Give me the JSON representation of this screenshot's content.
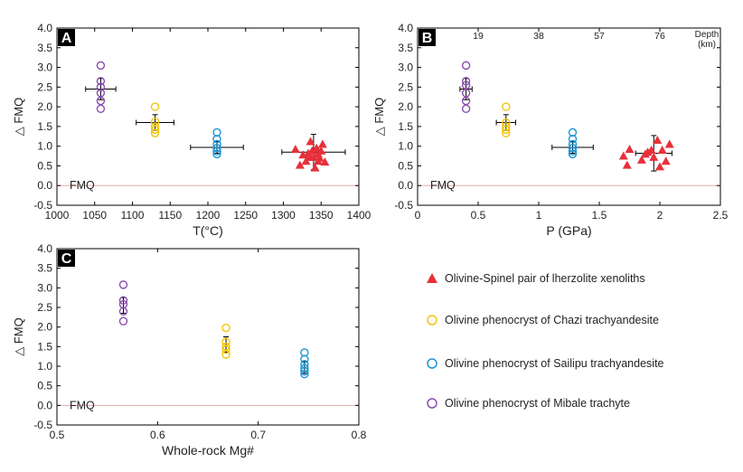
{
  "colors": {
    "red": "#e8303a",
    "yellow": "#f2c40c",
    "blue": "#1d95d3",
    "purple": "#8a4fb0",
    "fmq_line": "#e8a8a8"
  },
  "chart_data": [
    {
      "type": "scatter",
      "panel_label": "A",
      "xlabel": "T(°C)",
      "ylabel": "△ FMQ",
      "xlim": [
        1000,
        1400
      ],
      "ylim": [
        -0.5,
        4.0
      ],
      "xticks": [
        1000,
        1050,
        1100,
        1150,
        1200,
        1250,
        1300,
        1350,
        1400
      ],
      "xtick_labels": [
        "1000",
        "1050",
        "1100",
        "1150",
        "1200",
        "1250",
        "1300",
        "1350",
        "1400"
      ],
      "yticks": [
        -0.5,
        0,
        0.5,
        1,
        1.5,
        2,
        2.5,
        3,
        3.5,
        4
      ],
      "ytick_labels": [
        "-0.5",
        "0.0",
        "0.5",
        "1.0",
        "1.5",
        "2.0",
        "2.5",
        "3.0",
        "3.5",
        "4.0"
      ],
      "ref_line": {
        "y": 0,
        "label": "FMQ"
      },
      "series": [
        {
          "name": "Olivine-Spinel pair of lherzolite xenoliths",
          "color_key": "red",
          "marker": "triangle",
          "points": [
            [
              1316,
              0.92
            ],
            [
              1322,
              0.52
            ],
            [
              1326,
              0.78
            ],
            [
              1330,
              0.62
            ],
            [
              1333,
              0.82
            ],
            [
              1336,
              1.12
            ],
            [
              1338,
              0.88
            ],
            [
              1340,
              0.72
            ],
            [
              1342,
              0.45
            ],
            [
              1344,
              0.95
            ],
            [
              1346,
              0.8
            ],
            [
              1348,
              0.7
            ],
            [
              1350,
              0.88
            ],
            [
              1352,
              1.05
            ],
            [
              1355,
              0.6
            ],
            [
              1346,
              0.62
            ],
            [
              1334,
              0.72
            ]
          ],
          "mean": [
            1340,
            0.85
          ],
          "xerr": 42,
          "yerr": 0.45
        },
        {
          "name": "Olivine phenocryst of Chazi trachyandesite",
          "color_key": "yellow",
          "marker": "circle",
          "points": [
            [
              1130,
              2.0
            ],
            [
              1130,
              1.62
            ],
            [
              1130,
              1.5
            ],
            [
              1130,
              1.42
            ],
            [
              1130,
              1.33
            ]
          ],
          "mean": [
            1130,
            1.6
          ],
          "xerr": 25,
          "yerr": 0.2
        },
        {
          "name": "Olivine phenocryst of Sailipu trachyandesite",
          "color_key": "blue",
          "marker": "circle",
          "points": [
            [
              1212,
              1.35
            ],
            [
              1212,
              1.18
            ],
            [
              1212,
              1.05
            ],
            [
              1212,
              0.95
            ],
            [
              1212,
              0.87
            ],
            [
              1212,
              0.8
            ]
          ],
          "mean": [
            1212,
            0.97
          ],
          "xerr": 35,
          "yerr": 0.15
        },
        {
          "name": "Olivine phenocryst of Mibale trachyte",
          "color_key": "purple",
          "marker": "circle",
          "points": [
            [
              1058,
              3.05
            ],
            [
              1058,
              2.65
            ],
            [
              1058,
              2.5
            ],
            [
              1058,
              2.35
            ],
            [
              1058,
              2.15
            ],
            [
              1058,
              1.95
            ]
          ],
          "mean": [
            1058,
            2.45
          ],
          "xerr": 20,
          "yerr": 0.27
        }
      ]
    },
    {
      "type": "scatter",
      "panel_label": "B",
      "xlabel": "P (GPa)",
      "ylabel": "△ FMQ",
      "xlim": [
        0,
        2.5
      ],
      "ylim": [
        -0.5,
        4.0
      ],
      "xticks": [
        0,
        0.5,
        1,
        1.5,
        2,
        2.5
      ],
      "xtick_labels": [
        "0",
        "0.5",
        "1",
        "1.5",
        "2",
        "2.5"
      ],
      "yticks": [
        -0.5,
        0,
        0.5,
        1,
        1.5,
        2,
        2.5,
        3,
        3.5,
        4
      ],
      "ytick_labels": [
        "-0.5",
        "0.0",
        "0.5",
        "1.0",
        "1.5",
        "2.0",
        "2.5",
        "3.0",
        "3.5",
        "4.0"
      ],
      "top_axis_label": "Depth\n(km)",
      "top_ticks": [
        {
          "x": 0.5,
          "label": "19"
        },
        {
          "x": 1.0,
          "label": "38"
        },
        {
          "x": 1.5,
          "label": "57"
        },
        {
          "x": 2.0,
          "label": "76"
        }
      ],
      "ref_line": {
        "y": 0,
        "label": "FMQ"
      },
      "series": [
        {
          "name": "Olivine-Spinel pair of lherzolite xenoliths",
          "color_key": "red",
          "marker": "triangle",
          "points": [
            [
              1.7,
              0.75
            ],
            [
              1.73,
              0.52
            ],
            [
              1.75,
              0.92
            ],
            [
              1.85,
              0.65
            ],
            [
              1.88,
              0.8
            ],
            [
              1.9,
              0.85
            ],
            [
              1.93,
              0.9
            ],
            [
              1.95,
              0.72
            ],
            [
              1.98,
              1.15
            ],
            [
              2.0,
              0.48
            ],
            [
              2.02,
              0.9
            ],
            [
              2.05,
              0.62
            ],
            [
              2.08,
              1.05
            ]
          ],
          "mean": [
            1.95,
            0.82
          ],
          "xerr": 0.15,
          "yerr": 0.45
        },
        {
          "name": "Olivine phenocryst of Chazi trachyandesite",
          "color_key": "yellow",
          "marker": "circle",
          "points": [
            [
              0.73,
              2.0
            ],
            [
              0.73,
              1.6
            ],
            [
              0.73,
              1.5
            ],
            [
              0.73,
              1.42
            ],
            [
              0.73,
              1.33
            ]
          ],
          "mean": [
            0.73,
            1.6
          ],
          "xerr": 0.08,
          "yerr": 0.2
        },
        {
          "name": "Olivine phenocryst of Sailipu trachyandesite",
          "color_key": "blue",
          "marker": "circle",
          "points": [
            [
              1.28,
              1.35
            ],
            [
              1.28,
              1.18
            ],
            [
              1.28,
              1.05
            ],
            [
              1.28,
              0.95
            ],
            [
              1.28,
              0.87
            ],
            [
              1.28,
              0.8
            ]
          ],
          "mean": [
            1.28,
            0.97
          ],
          "xerr": 0.17,
          "yerr": 0.15
        },
        {
          "name": "Olivine phenocryst of Mibale trachyte",
          "color_key": "purple",
          "marker": "circle",
          "points": [
            [
              0.4,
              3.05
            ],
            [
              0.4,
              2.65
            ],
            [
              0.4,
              2.55
            ],
            [
              0.4,
              2.35
            ],
            [
              0.4,
              2.15
            ],
            [
              0.4,
              1.95
            ]
          ],
          "mean": [
            0.4,
            2.45
          ],
          "xerr": 0.05,
          "yerr": 0.27
        }
      ]
    },
    {
      "type": "scatter",
      "panel_label": "C",
      "xlabel": "Whole-rock Mg#",
      "ylabel": "△ FMQ",
      "xlim": [
        0.5,
        0.8
      ],
      "ylim": [
        -0.5,
        4.0
      ],
      "xticks": [
        0.5,
        0.6,
        0.7,
        0.8
      ],
      "xtick_labels": [
        "0.5",
        "0.6",
        "0.7",
        "0.8"
      ],
      "yticks": [
        -0.5,
        0,
        0.5,
        1,
        1.5,
        2,
        2.5,
        3,
        3.5,
        4
      ],
      "ytick_labels": [
        "-0.5",
        "0.0",
        "0.5",
        "1.0",
        "1.5",
        "2.0",
        "2.5",
        "3.0",
        "3.5",
        "4.0"
      ],
      "ref_line": {
        "y": 0,
        "label": "FMQ"
      },
      "series": [
        {
          "name": "Olivine phenocryst of Chazi trachyandesite",
          "color_key": "yellow",
          "marker": "circle",
          "points": [
            [
              0.668,
              1.98
            ],
            [
              0.668,
              1.62
            ],
            [
              0.668,
              1.5
            ],
            [
              0.668,
              1.42
            ],
            [
              0.668,
              1.3
            ]
          ],
          "mean": [
            0.668,
            1.55
          ],
          "xerr": 0,
          "yerr": 0.2
        },
        {
          "name": "Olivine phenocryst of Sailipu trachyandesite",
          "color_key": "blue",
          "marker": "circle",
          "points": [
            [
              0.746,
              1.35
            ],
            [
              0.746,
              1.18
            ],
            [
              0.746,
              1.05
            ],
            [
              0.746,
              0.95
            ],
            [
              0.746,
              0.87
            ],
            [
              0.746,
              0.8
            ]
          ],
          "mean": [
            0.746,
            0.97
          ],
          "xerr": 0,
          "yerr": 0.15
        },
        {
          "name": "Olivine phenocryst of Mibale trachyte",
          "color_key": "purple",
          "marker": "circle",
          "points": [
            [
              0.566,
              3.08
            ],
            [
              0.566,
              2.68
            ],
            [
              0.566,
              2.58
            ],
            [
              0.566,
              2.4
            ],
            [
              0.566,
              2.15
            ]
          ],
          "mean": [
            0.566,
            2.55
          ],
          "xerr": 0,
          "yerr": 0.2
        }
      ]
    }
  ],
  "legend": [
    {
      "label": "Olivine-Spinel pair of lherzolite xenoliths",
      "color_key": "red",
      "marker": "triangle"
    },
    {
      "label": "Olivine phenocryst of Chazi trachyandesite",
      "color_key": "yellow",
      "marker": "circle"
    },
    {
      "label": "Olivine phenocryst of Sailipu trachyandesite",
      "color_key": "blue",
      "marker": "circle"
    },
    {
      "label": "Olivine phenocryst of Mibale trachyte",
      "color_key": "purple",
      "marker": "circle"
    }
  ]
}
